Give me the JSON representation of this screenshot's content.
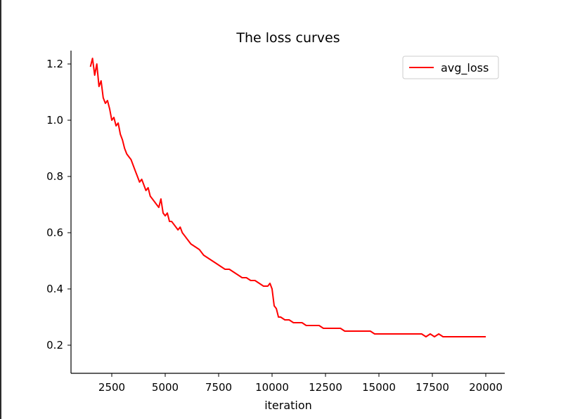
{
  "chart_data": {
    "type": "line",
    "title": "The loss curves",
    "xlabel": "iteration",
    "ylabel": "",
    "xlim": [
      0,
      20000
    ],
    "ylim": [
      0.1,
      1.25
    ],
    "xticks": [
      2500,
      5000,
      7500,
      10000,
      12500,
      15000,
      17500,
      20000
    ],
    "xtick_labels": [
      "2500",
      "5000",
      "7500",
      "10000",
      "12500",
      "15000",
      "17500",
      "20000"
    ],
    "yticks": [
      0.2,
      0.4,
      0.6,
      0.8,
      1.0,
      1.2
    ],
    "ytick_labels": [
      "0.2",
      "0.4",
      "0.6",
      "0.8",
      "1.0",
      "1.2"
    ],
    "grid": false,
    "legend_position": "top-right",
    "series": [
      {
        "name": "avg_loss",
        "color": "#ff0000",
        "x": [
          1500,
          1600,
          1700,
          1800,
          1900,
          2000,
          2100,
          2200,
          2300,
          2400,
          2500,
          2600,
          2700,
          2800,
          2900,
          3000,
          3100,
          3200,
          3300,
          3400,
          3500,
          3600,
          3700,
          3800,
          3900,
          4000,
          4100,
          4200,
          4300,
          4400,
          4500,
          4600,
          4700,
          4800,
          4900,
          5000,
          5100,
          5200,
          5300,
          5400,
          5500,
          5600,
          5700,
          5800,
          5900,
          6000,
          6200,
          6400,
          6600,
          6800,
          7000,
          7200,
          7400,
          7600,
          7800,
          8000,
          8200,
          8400,
          8600,
          8800,
          9000,
          9200,
          9400,
          9600,
          9800,
          9900,
          10000,
          10100,
          10200,
          10300,
          10400,
          10600,
          10800,
          11000,
          11200,
          11400,
          11600,
          11800,
          12000,
          12200,
          12400,
          12600,
          12800,
          13000,
          13200,
          13400,
          13600,
          13800,
          14000,
          14200,
          14400,
          14600,
          14800,
          15000,
          15200,
          15400,
          15600,
          15800,
          16000,
          16200,
          16400,
          16600,
          16800,
          17000,
          17200,
          17400,
          17600,
          17800,
          18000,
          18200,
          18400,
          18600,
          18800,
          19000,
          19200,
          19400,
          19600,
          19800,
          20000
        ],
        "y": [
          1.19,
          1.22,
          1.16,
          1.2,
          1.12,
          1.14,
          1.08,
          1.06,
          1.07,
          1.04,
          1.0,
          1.01,
          0.98,
          0.99,
          0.95,
          0.93,
          0.9,
          0.88,
          0.87,
          0.86,
          0.84,
          0.82,
          0.8,
          0.78,
          0.79,
          0.77,
          0.75,
          0.76,
          0.73,
          0.72,
          0.71,
          0.7,
          0.69,
          0.72,
          0.67,
          0.66,
          0.67,
          0.64,
          0.64,
          0.63,
          0.62,
          0.61,
          0.62,
          0.6,
          0.59,
          0.58,
          0.56,
          0.55,
          0.54,
          0.52,
          0.51,
          0.5,
          0.49,
          0.48,
          0.47,
          0.47,
          0.46,
          0.45,
          0.44,
          0.44,
          0.43,
          0.43,
          0.42,
          0.41,
          0.41,
          0.42,
          0.4,
          0.34,
          0.33,
          0.3,
          0.3,
          0.29,
          0.29,
          0.28,
          0.28,
          0.28,
          0.27,
          0.27,
          0.27,
          0.27,
          0.26,
          0.26,
          0.26,
          0.26,
          0.26,
          0.25,
          0.25,
          0.25,
          0.25,
          0.25,
          0.25,
          0.25,
          0.24,
          0.24,
          0.24,
          0.24,
          0.24,
          0.24,
          0.24,
          0.24,
          0.24,
          0.24,
          0.24,
          0.24,
          0.23,
          0.24,
          0.23,
          0.24,
          0.23,
          0.23,
          0.23,
          0.23,
          0.23,
          0.23,
          0.23,
          0.23,
          0.23,
          0.23,
          0.23
        ]
      }
    ]
  }
}
